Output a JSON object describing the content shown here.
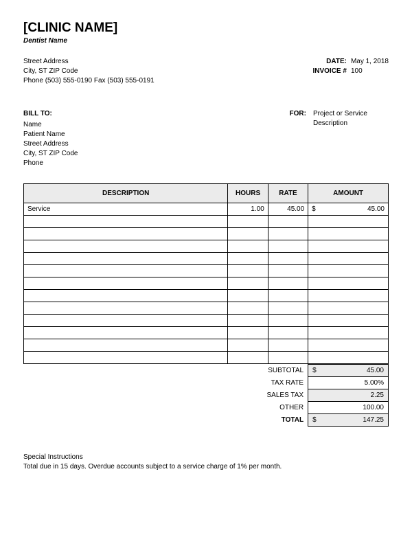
{
  "clinic": {
    "name": "[CLINIC NAME]",
    "dentist": "Dentist Name",
    "address1": "Street Address",
    "address2": "City, ST  ZIP Code",
    "phone_line": "Phone (503) 555-0190   Fax (503) 555-0191"
  },
  "meta": {
    "date_label": "DATE:",
    "date_value": "May 1, 2018",
    "invoice_label": "INVOICE #",
    "invoice_value": "100"
  },
  "bill_to": {
    "label": "BILL TO:",
    "line1": "Name",
    "line2": "Patient Name",
    "line3": "Street Address",
    "line4": "City, ST  ZIP Code",
    "line5": "Phone"
  },
  "for_block": {
    "label": "FOR:",
    "value": "Project or Service Description"
  },
  "table": {
    "columns": {
      "description": "DESCRIPTION",
      "hours": "HOURS",
      "rate": "RATE",
      "amount": "AMOUNT"
    },
    "rows": [
      {
        "desc": "Service",
        "hours": "1.00",
        "rate": "45.00",
        "amount_prefix": "$",
        "amount": "45.00"
      },
      {
        "desc": "",
        "hours": "",
        "rate": "",
        "amount_prefix": "",
        "amount": ""
      },
      {
        "desc": "",
        "hours": "",
        "rate": "",
        "amount_prefix": "",
        "amount": ""
      },
      {
        "desc": "",
        "hours": "",
        "rate": "",
        "amount_prefix": "",
        "amount": ""
      },
      {
        "desc": "",
        "hours": "",
        "rate": "",
        "amount_prefix": "",
        "amount": ""
      },
      {
        "desc": "",
        "hours": "",
        "rate": "",
        "amount_prefix": "",
        "amount": ""
      },
      {
        "desc": "",
        "hours": "",
        "rate": "",
        "amount_prefix": "",
        "amount": ""
      },
      {
        "desc": "",
        "hours": "",
        "rate": "",
        "amount_prefix": "",
        "amount": ""
      },
      {
        "desc": "",
        "hours": "",
        "rate": "",
        "amount_prefix": "",
        "amount": ""
      },
      {
        "desc": "",
        "hours": "",
        "rate": "",
        "amount_prefix": "",
        "amount": ""
      },
      {
        "desc": "",
        "hours": "",
        "rate": "",
        "amount_prefix": "",
        "amount": ""
      },
      {
        "desc": "",
        "hours": "",
        "rate": "",
        "amount_prefix": "",
        "amount": ""
      },
      {
        "desc": "",
        "hours": "",
        "rate": "",
        "amount_prefix": "",
        "amount": ""
      }
    ],
    "header_bg": "#ebebeb",
    "border_color": "#000000"
  },
  "totals": {
    "subtotal_label": "SUBTOTAL",
    "subtotal_prefix": "$",
    "subtotal_value": "45.00",
    "taxrate_label": "TAX RATE",
    "taxrate_value": "5.00%",
    "salestax_label": "SALES TAX",
    "salestax_value": "2.25",
    "other_label": "OTHER",
    "other_value": "100.00",
    "total_label": "TOTAL",
    "total_prefix": "$",
    "total_value": "147.25",
    "shaded_bg": "#ebebeb"
  },
  "footer": {
    "line1": "Special Instructions",
    "line2": "Total due in 15 days. Overdue accounts subject to a service charge of 1% per month."
  }
}
